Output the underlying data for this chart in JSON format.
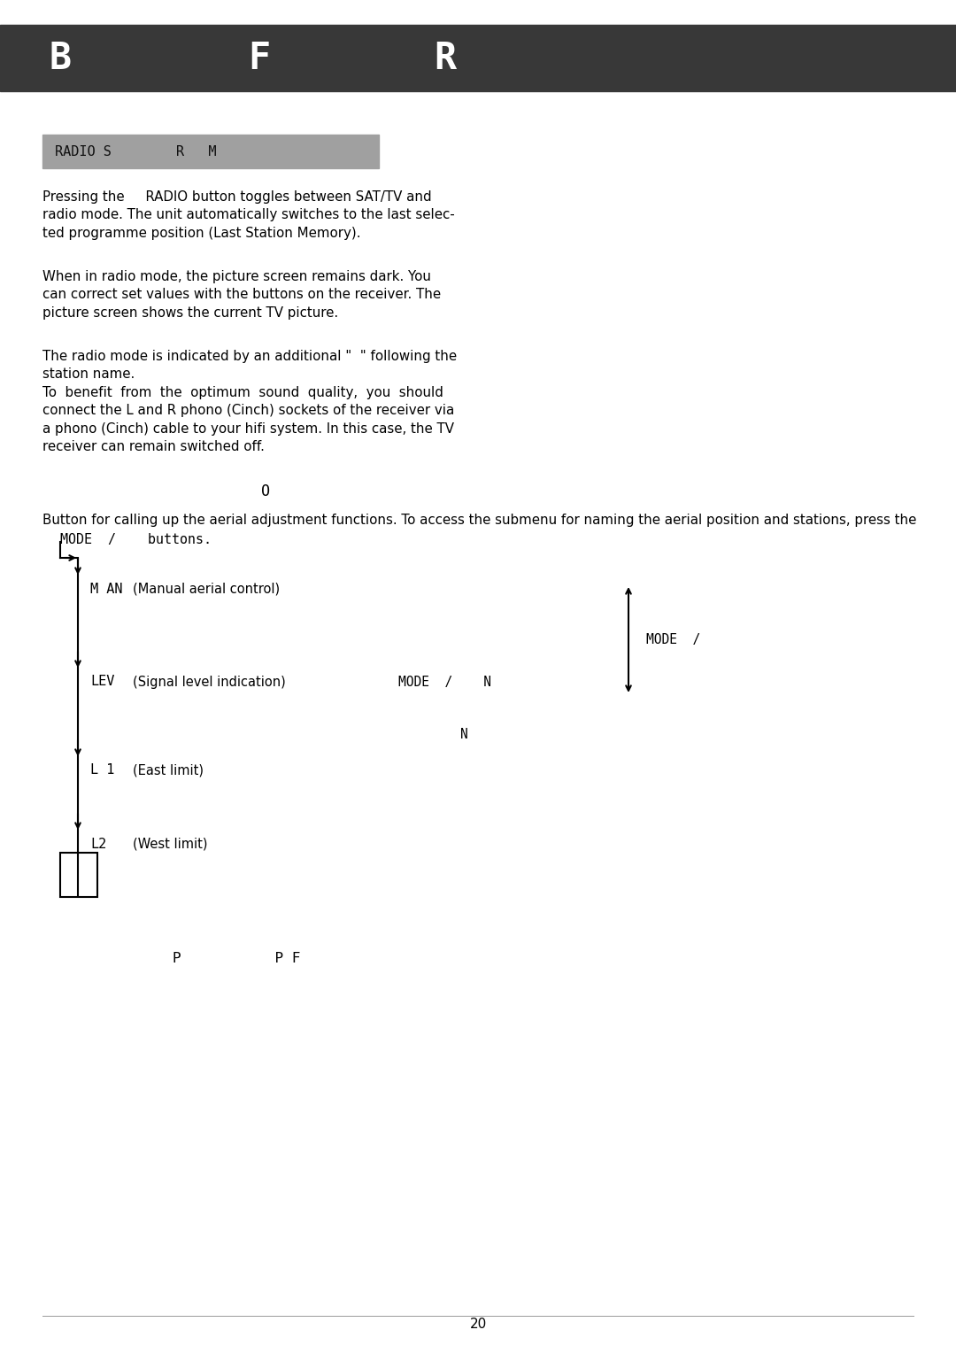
{
  "bg_color": "#ffffff",
  "header_bg": "#383838",
  "header_text_color": "#ffffff",
  "subheader_bg": "#a0a0a0",
  "subheader_text": "RADIO S        R   M",
  "para1": "Pressing the     RADIO button toggles between SAT/TV and\nradio mode. The unit automatically switches to the last selec-\nted programme position (Last Station Memory).",
  "para2": "When in radio mode, the picture screen remains dark. You\ncan correct set values with the buttons on the receiver. The\npicture screen shows the current TV picture.",
  "para3": "The radio mode is indicated by an additional \"  \" following the\nstation name.\nTo  benefit  from  the  optimum  sound  quality,  you  should\nconnect the L and R phono (Cinch) sockets of the receiver via\na phono (Cinch) cable to your hifi system. In this case, the TV\nreceiver can remain switched off.",
  "icon_label": "O",
  "desc_line": "Button for calling up the aerial adjustment functions. To access the submenu for naming the aerial position and stations, press the",
  "desc_line2": "    MODE  /    buttons.",
  "item_labels": [
    "M AN",
    "LEV",
    "L 1",
    "L2"
  ],
  "item_descs": [
    "(Manual aerial control)",
    "(Signal level indication)",
    "(East limit)",
    "(West limit)"
  ],
  "mode_label_center": "MODE  /    N",
  "mode_label_right": "MODE  /",
  "name_label": "N",
  "page_number": "20"
}
